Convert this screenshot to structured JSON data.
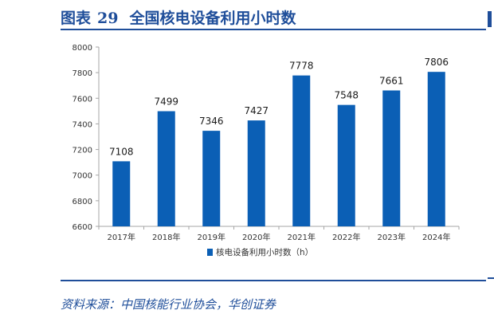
{
  "figure": {
    "label": "图表",
    "number": "29",
    "title": "全国核电设备利用小时数"
  },
  "source": "资料来源：中国核能行业协会，华创证券",
  "colors": {
    "accent": "#1f4e9a",
    "bar": "#0b5fb5"
  },
  "chart_data": {
    "type": "bar",
    "categories": [
      "2017年",
      "2018年",
      "2019年",
      "2020年",
      "2021年",
      "2022年",
      "2023年",
      "2024年"
    ],
    "series": [
      {
        "name": "核电设备利用小时数（h）",
        "values": [
          7108,
          7499,
          7346,
          7427,
          7778,
          7548,
          7661,
          7806
        ]
      }
    ],
    "yticks": [
      6600,
      6800,
      7000,
      7200,
      7400,
      7600,
      7800,
      8000
    ],
    "ylim": [
      6600,
      8000
    ],
    "grid": false,
    "legend": "bottom"
  }
}
